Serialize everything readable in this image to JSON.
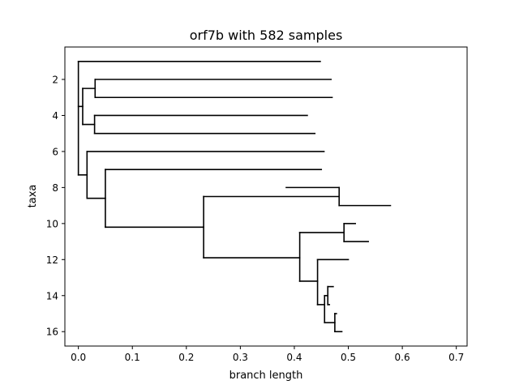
{
  "chart_data": {
    "type": "dendrogram",
    "title": "orf7b with 582 samples",
    "xlabel": "branch length",
    "ylabel": "taxa",
    "xlim": [
      -0.025,
      0.72
    ],
    "ylim": [
      16.8,
      0.2
    ],
    "xticks": [
      0.0,
      0.1,
      0.2,
      0.3,
      0.4,
      0.5,
      0.6,
      0.7
    ],
    "xtick_labels": [
      "0.0",
      "0.1",
      "0.2",
      "0.3",
      "0.4",
      "0.5",
      "0.6",
      "0.7"
    ],
    "yticks": [
      2,
      4,
      6,
      8,
      10,
      12,
      14,
      16
    ],
    "ytick_labels": [
      "2",
      "4",
      "6",
      "8",
      "10",
      "12",
      "14",
      "16"
    ],
    "grid": false,
    "segments": [
      {
        "type": "h",
        "x": [
          0.0,
          0.448
        ],
        "y": 1
      },
      {
        "type": "v",
        "x": 0.0,
        "y": [
          1,
          7.3
        ]
      },
      {
        "type": "h",
        "x": [
          0.0,
          0.008
        ],
        "y": 3.5
      },
      {
        "type": "v",
        "x": 0.008,
        "y": [
          2.5,
          4.5
        ]
      },
      {
        "type": "h",
        "x": [
          0.008,
          0.031
        ],
        "y": 2.5
      },
      {
        "type": "v",
        "x": 0.031,
        "y": [
          2,
          3
        ]
      },
      {
        "type": "h",
        "x": [
          0.031,
          0.468
        ],
        "y": 2
      },
      {
        "type": "h",
        "x": [
          0.031,
          0.47
        ],
        "y": 3
      },
      {
        "type": "h",
        "x": [
          0.008,
          0.03
        ],
        "y": 4.5
      },
      {
        "type": "v",
        "x": 0.03,
        "y": [
          4,
          5
        ]
      },
      {
        "type": "h",
        "x": [
          0.03,
          0.424
        ],
        "y": 4
      },
      {
        "type": "h",
        "x": [
          0.03,
          0.438
        ],
        "y": 5
      },
      {
        "type": "h",
        "x": [
          0.0,
          0.016
        ],
        "y": 7.3
      },
      {
        "type": "v",
        "x": 0.016,
        "y": [
          6,
          8.6
        ]
      },
      {
        "type": "h",
        "x": [
          0.016,
          0.455
        ],
        "y": 6
      },
      {
        "type": "h",
        "x": [
          0.016,
          0.05
        ],
        "y": 8.6
      },
      {
        "type": "v",
        "x": 0.05,
        "y": [
          7,
          10.2
        ]
      },
      {
        "type": "h",
        "x": [
          0.05,
          0.45
        ],
        "y": 7
      },
      {
        "type": "h",
        "x": [
          0.05,
          0.232
        ],
        "y": 10.2
      },
      {
        "type": "v",
        "x": 0.232,
        "y": [
          8.5,
          11.9
        ]
      },
      {
        "type": "h",
        "x": [
          0.232,
          0.483
        ],
        "y": 8.5
      },
      {
        "type": "v",
        "x": 0.483,
        "y": [
          8,
          9
        ]
      },
      {
        "type": "h",
        "x": [
          0.385,
          0.483
        ],
        "y": 8
      },
      {
        "type": "h",
        "x": [
          0.483,
          0.578
        ],
        "y": 9
      },
      {
        "type": "h",
        "x": [
          0.232,
          0.41
        ],
        "y": 11.9
      },
      {
        "type": "v",
        "x": 0.41,
        "y": [
          10.5,
          13.2
        ]
      },
      {
        "type": "h",
        "x": [
          0.41,
          0.492
        ],
        "y": 10.5
      },
      {
        "type": "v",
        "x": 0.492,
        "y": [
          10,
          11
        ]
      },
      {
        "type": "h",
        "x": [
          0.492,
          0.513
        ],
        "y": 10
      },
      {
        "type": "h",
        "x": [
          0.492,
          0.537
        ],
        "y": 11
      },
      {
        "type": "h",
        "x": [
          0.41,
          0.443
        ],
        "y": 13.2
      },
      {
        "type": "v",
        "x": 0.443,
        "y": [
          12,
          14.5
        ]
      },
      {
        "type": "h",
        "x": [
          0.443,
          0.5
        ],
        "y": 12
      },
      {
        "type": "h",
        "x": [
          0.443,
          0.456
        ],
        "y": 14.5
      },
      {
        "type": "v",
        "x": 0.456,
        "y": [
          14,
          15.5
        ]
      },
      {
        "type": "h",
        "x": [
          0.456,
          0.462
        ],
        "y": 14
      },
      {
        "type": "v",
        "x": 0.462,
        "y": [
          13.5,
          14.5
        ]
      },
      {
        "type": "h",
        "x": [
          0.462,
          0.472
        ],
        "y": 13.5
      },
      {
        "type": "h",
        "x": [
          0.462,
          0.465
        ],
        "y": 14.5
      },
      {
        "type": "h",
        "x": [
          0.456,
          0.475
        ],
        "y": 15.5
      },
      {
        "type": "v",
        "x": 0.475,
        "y": [
          15,
          16
        ]
      },
      {
        "type": "h",
        "x": [
          0.475,
          0.478
        ],
        "y": 15
      },
      {
        "type": "h",
        "x": [
          0.475,
          0.488
        ],
        "y": 16
      }
    ]
  }
}
